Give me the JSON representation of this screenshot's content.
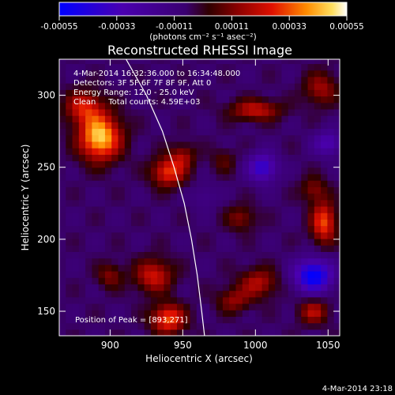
{
  "colorbar": {
    "ticks": [
      "-0.00055",
      "-0.00033",
      "-0.00011",
      "0.00011",
      "0.00033",
      "0.00055"
    ],
    "unit_label": "(photons cm⁻² s⁻¹ asec⁻²)",
    "range": [
      -0.00055,
      0.00055
    ]
  },
  "chart_data": {
    "type": "heatmap",
    "title": "Reconstructed RHESSI Image",
    "xlabel": "Heliocentric X (arcsec)",
    "ylabel": "Heliocentric Y (arcsec)",
    "xlim": [
      865,
      1058
    ],
    "ylim": [
      133,
      325
    ],
    "x_ticks": [
      900,
      950,
      1000,
      1050
    ],
    "y_ticks": [
      150,
      200,
      250,
      300
    ],
    "grid": false,
    "info_lines": [
      "4-Mar-2014 16:32:36.000 to 16:34:48.000",
      "Detectors: 3F 5F 6F 7F 8F 9F, Att 0",
      "Energy Range: 12.0 - 25.0 keV",
      "Clean     Total counts: 4.59E+03"
    ],
    "peak_label": "Position of Peak = [893,271]",
    "peak": [
      893,
      271
    ],
    "limb_curve": [
      [
        911,
        325
      ],
      [
        925,
        300
      ],
      [
        936,
        275
      ],
      [
        944,
        250
      ],
      [
        951,
        225
      ],
      [
        956,
        200
      ],
      [
        960,
        175
      ],
      [
        963,
        150
      ],
      [
        965,
        133
      ]
    ],
    "sources": [
      {
        "x": 893,
        "y": 271,
        "amp": 0.00055,
        "sx": 10,
        "sy": 11
      },
      {
        "x": 882,
        "y": 292,
        "amp": 0.0003,
        "sx": 9,
        "sy": 8
      },
      {
        "x": 940,
        "y": 247,
        "amp": 0.00036,
        "sx": 8,
        "sy": 7
      },
      {
        "x": 950,
        "y": 258,
        "amp": 0.0002,
        "sx": 6,
        "sy": 6
      },
      {
        "x": 930,
        "y": 175,
        "amp": 0.0003,
        "sx": 9,
        "sy": 8
      },
      {
        "x": 940,
        "y": 145,
        "amp": 0.0004,
        "sx": 8,
        "sy": 7
      },
      {
        "x": 900,
        "y": 175,
        "amp": 0.00018,
        "sx": 6,
        "sy": 6
      },
      {
        "x": 1000,
        "y": 290,
        "amp": 0.00028,
        "sx": 12,
        "sy": 5
      },
      {
        "x": 1045,
        "y": 305,
        "amp": 0.00022,
        "sx": 8,
        "sy": 8
      },
      {
        "x": 1047,
        "y": 212,
        "amp": 0.00038,
        "sx": 6,
        "sy": 10
      },
      {
        "x": 1040,
        "y": 235,
        "amp": 0.00018,
        "sx": 6,
        "sy": 6
      },
      {
        "x": 1040,
        "y": 150,
        "amp": 0.00025,
        "sx": 7,
        "sy": 6
      },
      {
        "x": 1002,
        "y": 170,
        "amp": 0.00025,
        "sx": 9,
        "sy": 7
      },
      {
        "x": 985,
        "y": 158,
        "amp": 0.0002,
        "sx": 8,
        "sy": 6
      },
      {
        "x": 990,
        "y": 215,
        "amp": 0.00018,
        "sx": 7,
        "sy": 6
      },
      {
        "x": 978,
        "y": 255,
        "amp": 0.00012,
        "sx": 6,
        "sy": 6
      },
      {
        "x": 1040,
        "y": 175,
        "amp": -0.0005,
        "sx": 9,
        "sy": 8
      },
      {
        "x": 1005,
        "y": 250,
        "amp": -0.00035,
        "sx": 7,
        "sy": 7
      },
      {
        "x": 1050,
        "y": 267,
        "amp": -0.00025,
        "sx": 7,
        "sy": 6
      },
      {
        "x": 965,
        "y": 230,
        "amp": -0.0001,
        "sx": 6,
        "sy": 6
      }
    ],
    "background": -6e-05
  },
  "footer": {
    "timestamp": "4-Mar-2014 23:18"
  }
}
